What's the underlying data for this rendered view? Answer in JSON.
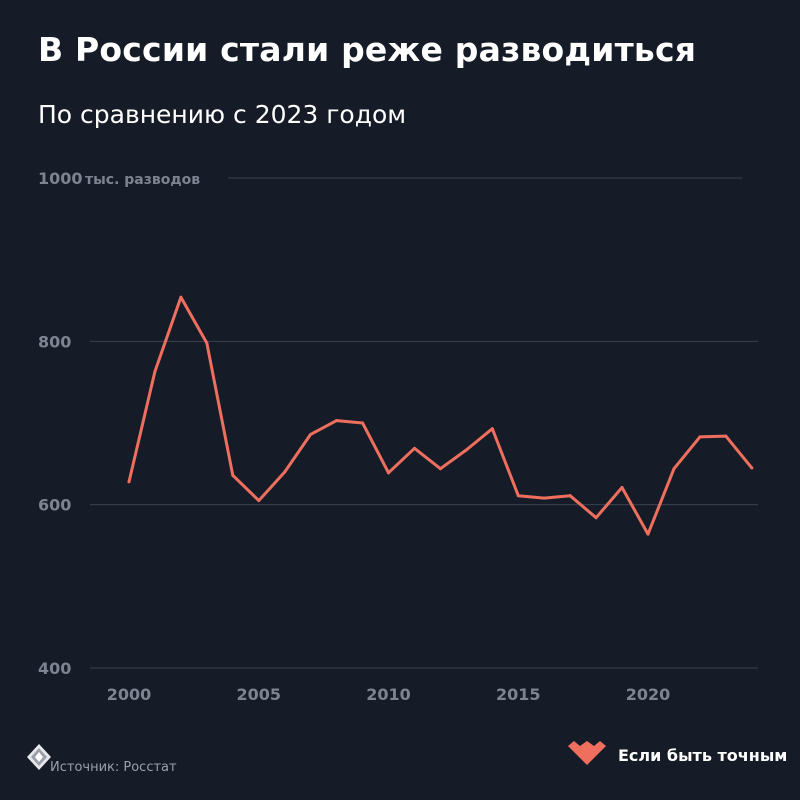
{
  "header": {
    "title": "В России стали реже разводиться",
    "subtitle": "По сравнению с 2023 годом"
  },
  "footer": {
    "source": "Источник: Росстат",
    "brand": "Если быть точным",
    "logo_left_icon": "diamond-logo-icon",
    "brand_icon": "heart-logo-icon"
  },
  "colors": {
    "background": "#161c27",
    "line": "#ef6f5e",
    "grid": "#3a4150",
    "tick_text": "#7d8390"
  },
  "chart_data": {
    "type": "line",
    "unit_label": "тыс. разводов",
    "x": [
      2000,
      2001,
      2002,
      2003,
      2004,
      2005,
      2006,
      2007,
      2008,
      2009,
      2010,
      2011,
      2012,
      2013,
      2014,
      2015,
      2016,
      2017,
      2018,
      2019,
      2020,
      2021,
      2022,
      2023,
      2024
    ],
    "series": [
      {
        "values": [
          628,
          763,
          854,
          798,
          636,
          605,
          640,
          686,
          703,
          700,
          639,
          669,
          644,
          667,
          693,
          611,
          608,
          611,
          584,
          621,
          564,
          644,
          683,
          684,
          645
        ]
      }
    ],
    "xticks": [
      2000,
      2005,
      2010,
      2015,
      2020
    ],
    "yticks": [
      400,
      600,
      800,
      1000
    ],
    "xlim": [
      1999,
      2024
    ],
    "ylim": [
      400,
      1000
    ],
    "grid": true,
    "legend": "none"
  }
}
